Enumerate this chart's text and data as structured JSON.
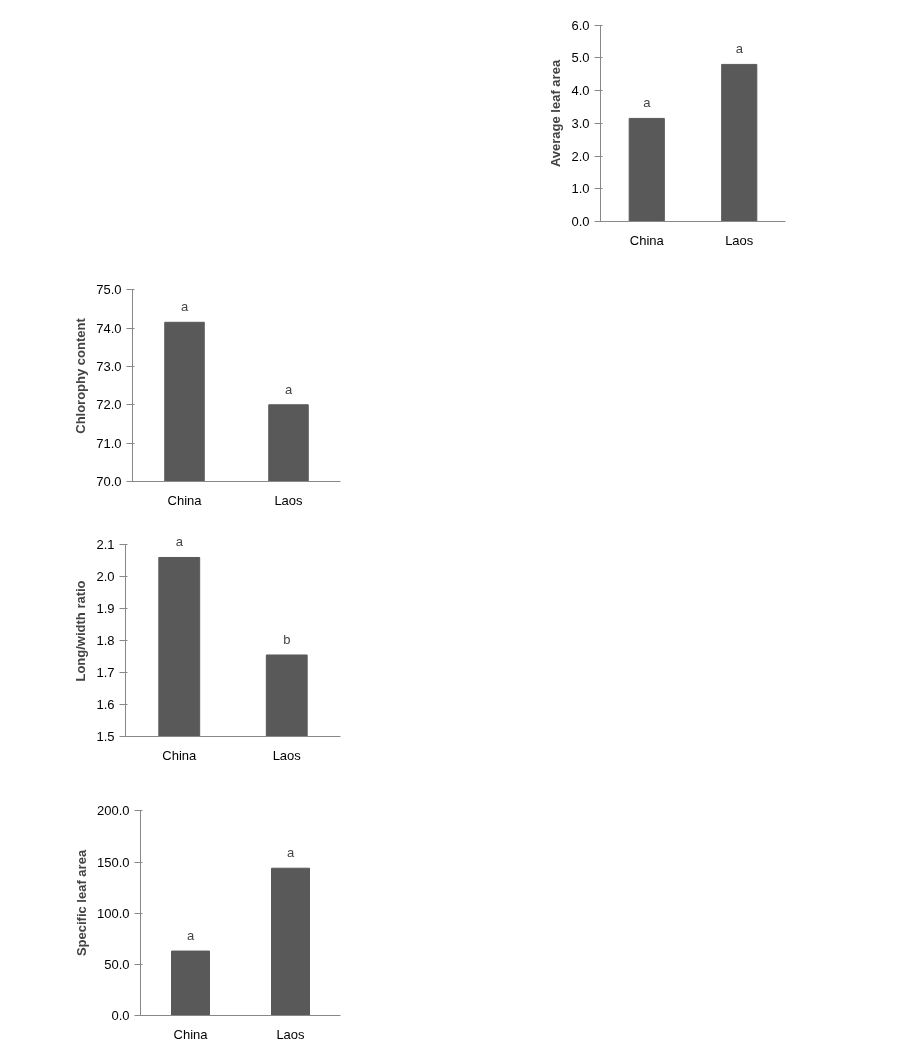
{
  "chart_data": [
    {
      "type": "bar",
      "categories": [
        "China",
        "Laos"
      ],
      "values": [
        3.15,
        4.8
      ],
      "color": "#595959",
      "ylabel": "Average leaf area",
      "ylim": [
        0,
        6
      ],
      "yticks": [
        {
          "value": 0,
          "label": "0.0"
        },
        {
          "value": 1,
          "label": "1.0"
        },
        {
          "value": 2,
          "label": "2.0"
        },
        {
          "value": 3,
          "label": "3.0"
        },
        {
          "value": 4,
          "label": "4.0"
        },
        {
          "value": 5,
          "label": "5.0"
        },
        {
          "value": 6,
          "label": "6.0"
        }
      ],
      "grid": false,
      "annotations": [
        {
          "text": "a",
          "x": "China",
          "y": 3.15
        },
        {
          "text": "a",
          "x": "Laos",
          "y": 4.8
        }
      ]
    },
    {
      "type": "bar",
      "categories": [
        "China",
        "Laos"
      ],
      "values": [
        74.15,
        72.0
      ],
      "color": "#595959",
      "ylabel": "Chlorophy content",
      "ylim": [
        70,
        75
      ],
      "yticks": [
        {
          "value": 70,
          "label": "70.0"
        },
        {
          "value": 71,
          "label": "71.0"
        },
        {
          "value": 72,
          "label": "72.0"
        },
        {
          "value": 73,
          "label": "73.0"
        },
        {
          "value": 74,
          "label": "74.0"
        },
        {
          "value": 75,
          "label": "75.0"
        }
      ],
      "grid": false,
      "annotations": [
        {
          "text": "a",
          "x": "China",
          "y": 74.15
        },
        {
          "text": "a",
          "x": "Laos",
          "y": 72.0
        }
      ]
    },
    {
      "type": "bar",
      "categories": [
        "China",
        "Laos"
      ],
      "values": [
        2.06,
        1.755
      ],
      "color": "#595959",
      "ylabel": "Long/width ratio",
      "ylim": [
        1.5,
        2.1
      ],
      "yticks": [
        1.5,
        1.6,
        1.7,
        1.8,
        1.9,
        {
          "value": 2.0,
          "label": "2.0"
        },
        2.1
      ],
      "grid": false,
      "annotations": [
        {
          "text": "a",
          "x": "China",
          "y": 2.06
        },
        {
          "text": "b",
          "x": "Laos",
          "y": 1.755
        }
      ]
    },
    {
      "type": "bar",
      "categories": [
        "China",
        "Laos"
      ],
      "values": [
        63,
        144
      ],
      "color": "#595959",
      "ylabel": "Specific leaf area",
      "ylim": [
        0,
        200
      ],
      "yticks": [
        {
          "value": 0,
          "label": "0.0"
        },
        {
          "value": 50,
          "label": "50.0"
        },
        {
          "value": 100,
          "label": "100.0"
        },
        {
          "value": 150,
          "label": "150.0"
        },
        {
          "value": 200,
          "label": "200.0"
        }
      ],
      "grid": false,
      "annotations": [
        {
          "text": "a",
          "x": "China",
          "y": 63
        },
        {
          "text": "a",
          "x": "Laos",
          "y": 144
        }
      ]
    }
  ]
}
